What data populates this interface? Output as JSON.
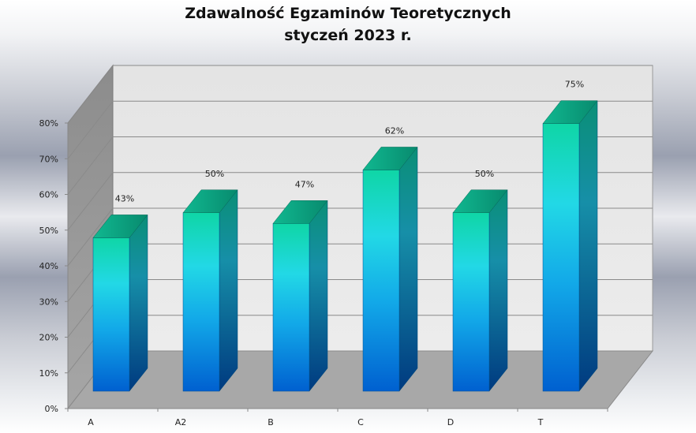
{
  "chart_data": {
    "type": "bar",
    "title": "Zdawalność Egzaminów Teoretycznych",
    "subtitle": "styczeń 2023 r.",
    "categories": [
      "A",
      "A2",
      "B",
      "C",
      "D",
      "T"
    ],
    "values": [
      43,
      50,
      47,
      62,
      50,
      75
    ],
    "value_labels": [
      "43%",
      "50%",
      "47%",
      "62%",
      "50%",
      "75%"
    ],
    "y_ticks": [
      {
        "value": 0,
        "label": "0%"
      },
      {
        "value": 10,
        "label": "10%"
      },
      {
        "value": 20,
        "label": "20%"
      },
      {
        "value": 30,
        "label": "30%"
      },
      {
        "value": 40,
        "label": "40%"
      },
      {
        "value": 50,
        "label": "50%"
      },
      {
        "value": 60,
        "label": "60%"
      },
      {
        "value": 70,
        "label": "70%"
      },
      {
        "value": 80,
        "label": "80%"
      }
    ],
    "ylim": [
      0,
      80
    ],
    "xlabel": "",
    "ylabel": "",
    "grid": true,
    "legend": "none",
    "colors": {
      "bar_top": "#0fd0a8",
      "bar_middle": "#22d6e8",
      "bar_bottom": "#0066cc",
      "back_wall": "#e8e8e8",
      "side_wall": "#9a9a9a",
      "floor": "#a8a8a8",
      "gridline": "#8a8a8a"
    }
  }
}
